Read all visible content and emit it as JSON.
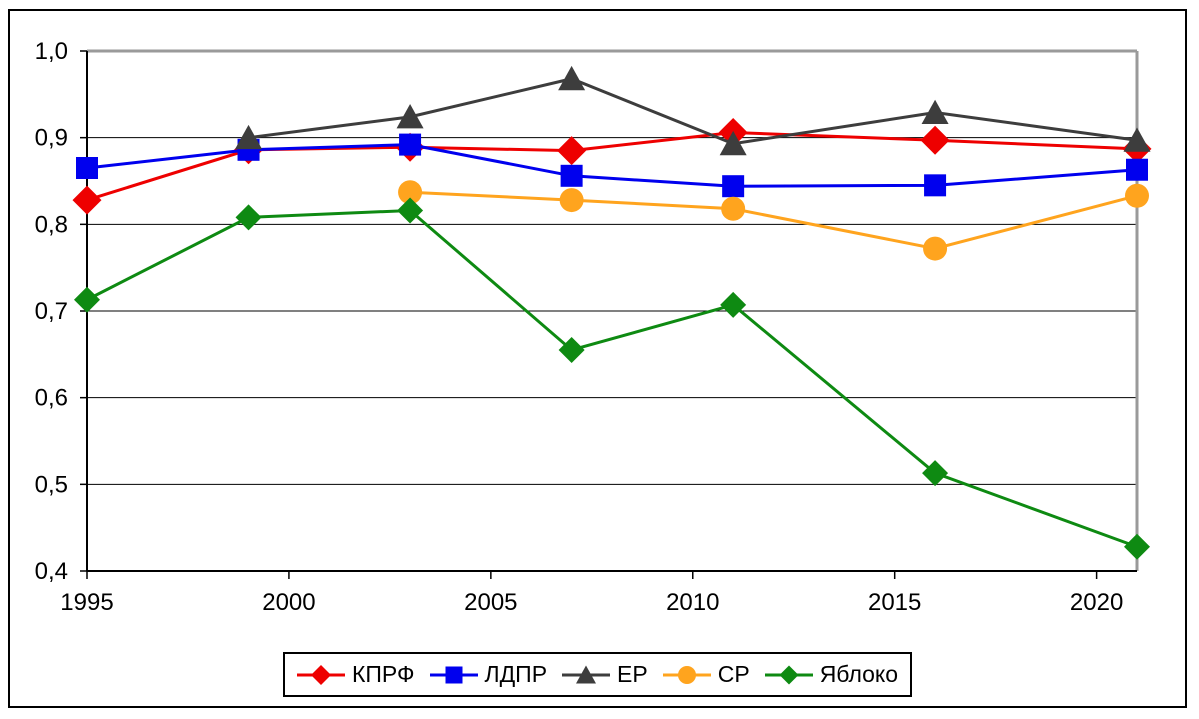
{
  "chart_data": {
    "type": "line",
    "title": "",
    "xlabel": "",
    "ylabel": "",
    "xlim": [
      1995,
      2021
    ],
    "ylim": [
      0.4,
      1.0
    ],
    "grid": "horizontal",
    "legend_position": "bottom",
    "x": [
      1995,
      1999,
      2003,
      2007,
      2011,
      2016,
      2021
    ],
    "x_tick_values": [
      1995,
      2000,
      2005,
      2010,
      2015,
      2020
    ],
    "x_tick_labels": [
      "1995",
      "2000",
      "2005",
      "2010",
      "2015",
      "2020"
    ],
    "y_tick_values": [
      1.0,
      0.9,
      0.8,
      0.7,
      0.6,
      0.5,
      0.4
    ],
    "y_tick_labels": [
      "1,0",
      "0,9",
      "0,8",
      "0,7",
      "0,6",
      "0,5",
      "0,4"
    ],
    "series": [
      {
        "slug": "kprf",
        "name": "КПРФ",
        "color": "#ee0000",
        "marker": "diamond",
        "values": [
          0.828,
          0.886,
          0.889,
          0.885,
          0.906,
          0.897,
          0.887
        ]
      },
      {
        "slug": "ldpr",
        "name": "ЛДПР",
        "color": "#0000ee",
        "marker": "square",
        "values": [
          0.865,
          0.886,
          0.892,
          0.856,
          0.844,
          0.845,
          0.863
        ]
      },
      {
        "slug": "er",
        "name": "ЕР",
        "color": "#3d3d3d",
        "marker": "triangle",
        "values": [
          null,
          0.9,
          0.924,
          0.968,
          0.893,
          0.929,
          0.897
        ]
      },
      {
        "slug": "sr",
        "name": "СР",
        "color": "#ffa41e",
        "marker": "circle",
        "values": [
          null,
          null,
          0.837,
          0.828,
          0.818,
          0.772,
          0.833
        ]
      },
      {
        "slug": "yabloko",
        "name": "Яблоко",
        "color": "#0e8a12",
        "marker": "diamond",
        "values": [
          0.713,
          0.808,
          0.816,
          0.655,
          0.707,
          0.513,
          0.428
        ]
      }
    ],
    "colors": {
      "gridline": "#000000",
      "axis": "#000000",
      "border_top_right": "#9a9a9a",
      "plot_background": "#ffffff",
      "label_text": "#000000"
    }
  }
}
